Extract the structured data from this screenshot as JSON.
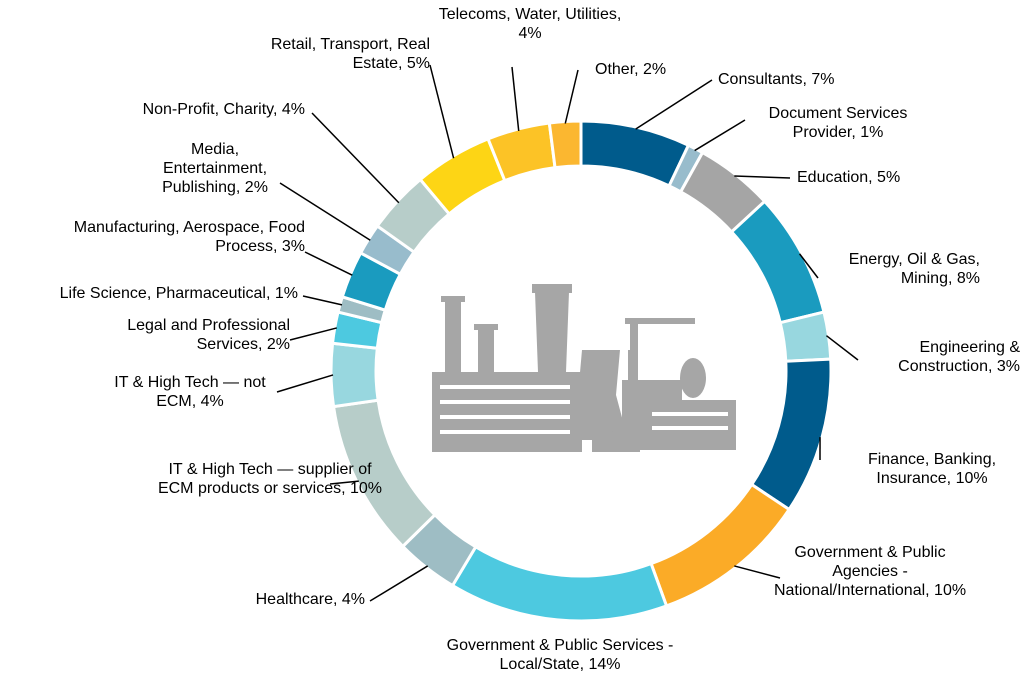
{
  "chart_data": {
    "type": "donut",
    "categories": [
      "Consultants, 7%",
      "Document Services Provider, 1%",
      "Education, 5%",
      "Energy, Oil & Gas, Mining, 8%",
      "Engineering & Construction, 3%",
      "Finance, Banking, Insurance, 10%",
      "Government & Public Agencies - National/International, 10%",
      "Government & Public Services - Local/State, 14%",
      "Healthcare, 4%",
      "IT & High Tech — supplier of ECM products or services, 10%",
      "IT & High Tech — not ECM, 4%",
      "Legal and Professional Services, 2%",
      "Life Science, Pharmaceutical, 1%",
      "Manufacturing, Aerospace, Food Process, 3%",
      "Media, Entertainment, Publishing, 2%",
      "Non-Profit, Charity, 4%",
      "Retail, Transport, Real Estate, 5%",
      "Telecoms, Water, Utilities, 4%",
      "Other, 2%"
    ],
    "values": [
      7,
      1,
      5,
      8,
      3,
      10,
      10,
      14,
      4,
      10,
      4,
      2,
      1,
      3,
      2,
      4,
      5,
      4,
      2
    ],
    "colors": [
      "#005b8c",
      "#98bccc",
      "#a5a5a5",
      "#1a9bbf",
      "#98d7df",
      "#005b8c",
      "#fbab27",
      "#4dc9e0",
      "#9ebdc4",
      "#b7cdc9",
      "#98d7df",
      "#4dc9e0",
      "#9ebdc4",
      "#1a9bbf",
      "#98bccc",
      "#b7cdc9",
      "#fdd515",
      "#fcc326",
      "#fbb730"
    ]
  }
}
